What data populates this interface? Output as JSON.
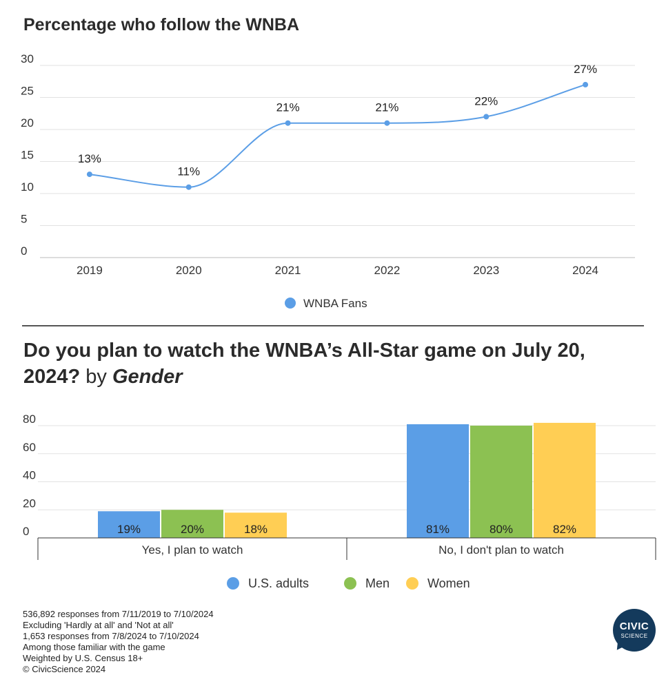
{
  "chart1": {
    "title": "Percentage who follow the WNBA",
    "legend_label": "WNBA Fans",
    "legend_color": "#5b9ee6"
  },
  "chart2": {
    "title_bold": "Do you plan to watch the WNBA’s All-Star game on July 20, 2024?",
    "title_plain": " by ",
    "title_italic": "Gender"
  },
  "chart_data": [
    {
      "type": "line",
      "title": "Percentage who follow the WNBA",
      "x": [
        "2019",
        "2020",
        "2021",
        "2022",
        "2023",
        "2024"
      ],
      "series": [
        {
          "name": "WNBA Fans",
          "values": [
            13,
            11,
            21,
            21,
            22,
            27
          ],
          "labels": [
            "13%",
            "11%",
            "21%",
            "21%",
            "22%",
            "27%"
          ],
          "color": "#5b9ee6"
        }
      ],
      "yticks": [
        "30",
        "25",
        "20",
        "15",
        "10",
        "5",
        "0"
      ],
      "ylim": [
        0,
        30
      ],
      "grid": true,
      "legend": "bottom"
    },
    {
      "type": "bar",
      "title": "Do you plan to watch the WNBA’s All-Star game on July 20, 2024? by Gender",
      "categories": [
        "Yes, I plan to watch",
        "No, I don't plan to watch"
      ],
      "series": [
        {
          "name": "U.S. adults",
          "values": [
            19,
            81
          ],
          "labels": [
            "19%",
            "81%"
          ],
          "color": "#5b9ee6"
        },
        {
          "name": "Men",
          "values": [
            20,
            80
          ],
          "labels": [
            "20%",
            "80%"
          ],
          "color": "#8cc152"
        },
        {
          "name": "Women",
          "values": [
            18,
            82
          ],
          "labels": [
            "18%",
            "82%"
          ],
          "color": "#ffce54"
        }
      ],
      "yticks": [
        "80",
        "60",
        "40",
        "20",
        "0"
      ],
      "ylim": [
        0,
        80
      ],
      "grid": true,
      "legend": "bottom"
    }
  ],
  "notes": [
    "536,892 responses from 7/11/2019 to 7/10/2024",
    "Excluding 'Hardly at all' and 'Not at all'",
    "1,653 responses from 7/8/2024 to 7/10/2024",
    "Among those familiar with the game",
    "Weighted by U.S. Census 18+",
    "© CivicScience 2024"
  ],
  "logo": {
    "line1": "CIVIC",
    "line2": "SCIENCE"
  }
}
